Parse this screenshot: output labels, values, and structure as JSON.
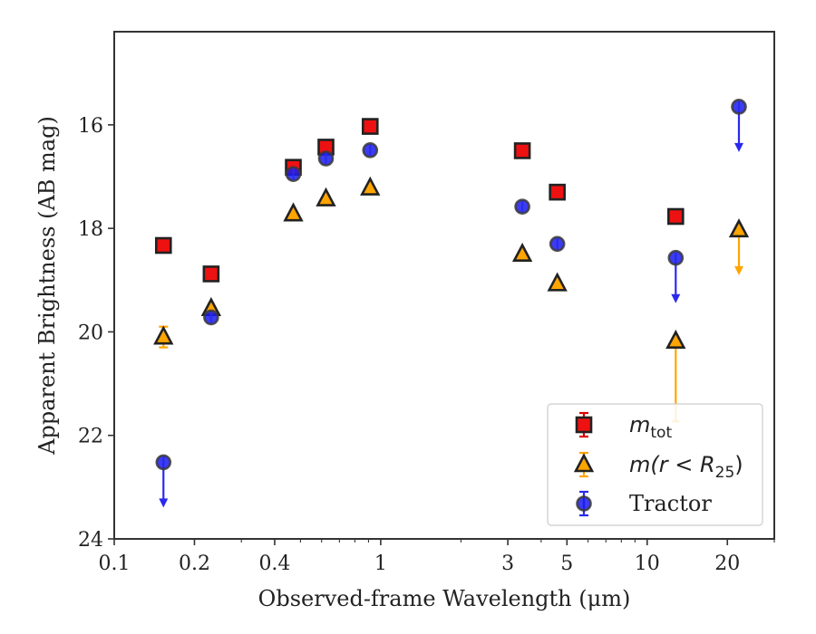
{
  "chart_data": {
    "type": "scatter",
    "xlabel": "Observed-frame Wavelength (μm)",
    "ylabel": "Apparent Brightness (AB mag)",
    "xscale": "log",
    "xlim": [
      0.1,
      30
    ],
    "ylim": [
      24,
      14.2
    ],
    "y_inverted": true,
    "xticks": [
      0.1,
      0.2,
      0.4,
      1,
      3,
      5,
      10,
      20
    ],
    "xtick_labels": [
      "0.1",
      "0.2",
      "0.4",
      "1",
      "3",
      "5",
      "10",
      "20"
    ],
    "yticks": [
      16,
      18,
      20,
      22,
      24
    ],
    "ytick_labels": [
      "16",
      "18",
      "20",
      "22",
      "24"
    ],
    "grid": false,
    "legend_position": "lower-right",
    "series": [
      {
        "key": "mtot",
        "legend_label": "m",
        "legend_sub": "tot",
        "marker": "square",
        "color": "#ee1111",
        "errcolor": "#dd0000",
        "points": [
          {
            "x": 0.153,
            "y": 18.33
          },
          {
            "x": 0.231,
            "y": 18.88
          },
          {
            "x": 0.47,
            "y": 16.82
          },
          {
            "x": 0.623,
            "y": 16.43
          },
          {
            "x": 0.913,
            "y": 16.03
          },
          {
            "x": 3.4,
            "y": 16.5
          },
          {
            "x": 4.6,
            "y": 17.3
          },
          {
            "x": 12.8,
            "y": 17.77
          }
        ]
      },
      {
        "key": "mr25",
        "legend_label": "m(r < R",
        "legend_sub": "25",
        "legend_close": ")",
        "marker": "triangle",
        "color": "#ffa500",
        "errcolor": "#ffa500",
        "points": [
          {
            "x": 0.153,
            "y": 20.1,
            "yerr": 0.2
          },
          {
            "x": 0.231,
            "y": 19.55
          },
          {
            "x": 0.47,
            "y": 17.72
          },
          {
            "x": 0.623,
            "y": 17.43
          },
          {
            "x": 0.913,
            "y": 17.22
          },
          {
            "x": 3.4,
            "y": 18.5
          },
          {
            "x": 4.6,
            "y": 19.07
          },
          {
            "x": 12.8,
            "y": 20.18,
            "yerr_lo": 1.55
          },
          {
            "x": 22.1,
            "y": 18.03,
            "upper_limit": true
          }
        ]
      },
      {
        "key": "tractor",
        "legend_label": "Tractor",
        "marker": "circle",
        "color": "#1a1aee",
        "errcolor": "#2a2aee",
        "points": [
          {
            "x": 0.153,
            "y": 22.52,
            "upper_limit": true
          },
          {
            "x": 0.231,
            "y": 19.72
          },
          {
            "x": 0.47,
            "y": 16.95
          },
          {
            "x": 0.623,
            "y": 16.65
          },
          {
            "x": 0.913,
            "y": 16.49
          },
          {
            "x": 3.4,
            "y": 17.58
          },
          {
            "x": 4.6,
            "y": 18.3
          },
          {
            "x": 12.8,
            "y": 18.57,
            "upper_limit": true
          },
          {
            "x": 22.1,
            "y": 15.65,
            "upper_limit": true
          }
        ]
      }
    ]
  }
}
